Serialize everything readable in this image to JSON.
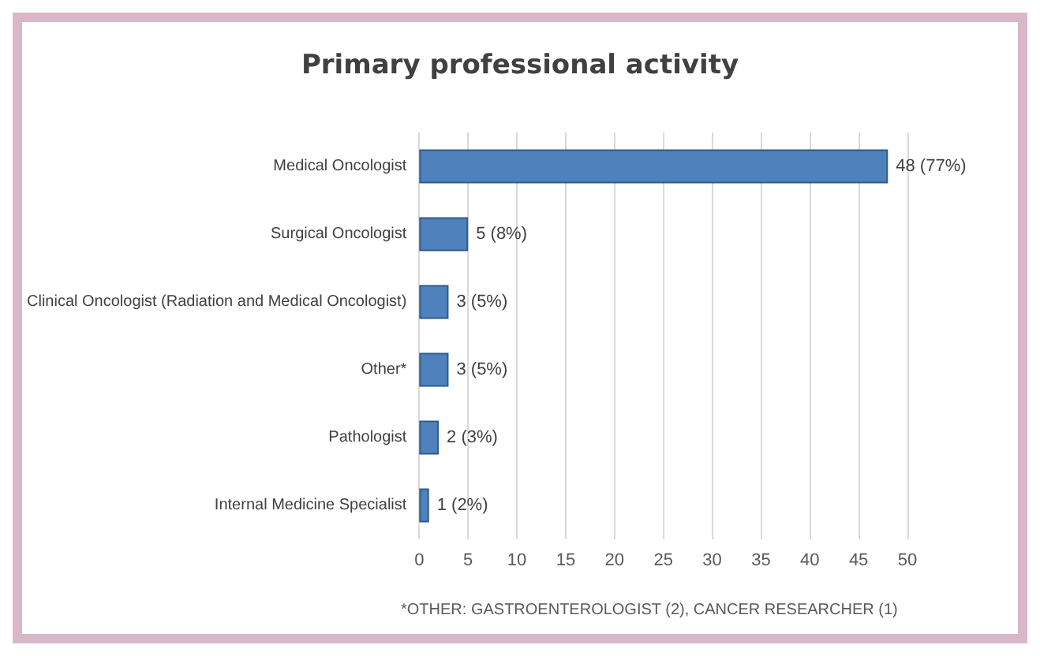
{
  "chart_data": {
    "type": "bar",
    "orientation": "horizontal",
    "title": "Primary professional activity",
    "categories": [
      "Medical Oncologist",
      "Surgical Oncologist",
      "Clinical Oncologist (Radiation and Medical Oncologist)",
      "Other*",
      "Pathologist",
      "Internal Medicine Specialist"
    ],
    "values": [
      48,
      5,
      3,
      3,
      2,
      1
    ],
    "value_labels": [
      "48 (77%)",
      "5 (8%)",
      "3 (5%)",
      "3 (5%)",
      "2 (3%)",
      "1 (2%)"
    ],
    "color": "#4f81bd",
    "xlim": [
      0,
      50
    ],
    "xticks": [
      0,
      5,
      10,
      15,
      20,
      25,
      30,
      35,
      40,
      45,
      50
    ],
    "grid": "x",
    "annotations": [
      "*OTHER: GASTROENTEROLOGIST (2), CANCER RESEARCHER (1)"
    ]
  }
}
